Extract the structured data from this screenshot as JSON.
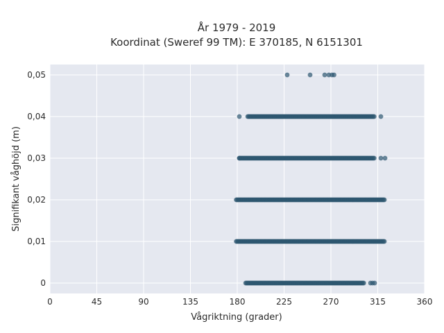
{
  "chart_data": {
    "type": "scatter",
    "title_line1": "År 1979 - 2019",
    "title_line2": "Koordinat (Sweref 99 TM): E 370185, N 6151301",
    "xlabel": "Vågriktning (grader)",
    "ylabel": "Signifikant våghöjd (m)",
    "xlim": [
      0,
      360
    ],
    "ylim": [
      -0.0025,
      0.0525
    ],
    "x_ticks": [
      0,
      45,
      90,
      135,
      180,
      225,
      270,
      315,
      360
    ],
    "x_tick_labels": [
      "0",
      "45",
      "90",
      "135",
      "180",
      "225",
      "270",
      "315",
      "360"
    ],
    "y_ticks": [
      0,
      0.01,
      0.02,
      0.03,
      0.04,
      0.05
    ],
    "y_tick_labels": [
      "0",
      "0,01",
      "0,02",
      "0,03",
      "0,04",
      "0,05"
    ],
    "grid": true,
    "colors": {
      "plot_bg": "#e5e8f0",
      "grid": "#ffffff",
      "marker": "#2e5770"
    },
    "series": [
      {
        "values": [
          {
            "y": 0,
            "x_min": 188,
            "x_max": 302,
            "isolated": [
              308,
              310,
              312
            ]
          },
          {
            "y": 0.01,
            "x_min": 179,
            "x_max": 322,
            "isolated": []
          },
          {
            "y": 0.02,
            "x_min": 179,
            "x_max": 322,
            "isolated": []
          },
          {
            "y": 0.03,
            "x_min": 182,
            "x_max": 312,
            "isolated": [
              182,
              318,
              322
            ]
          },
          {
            "y": 0.04,
            "x_min": 190,
            "x_max": 312,
            "isolated": [
              182,
              318
            ]
          },
          {
            "y": 0.05,
            "x_min": null,
            "x_max": null,
            "isolated": [
              228,
              250,
              264,
              268,
              271,
              273
            ]
          }
        ]
      }
    ]
  }
}
